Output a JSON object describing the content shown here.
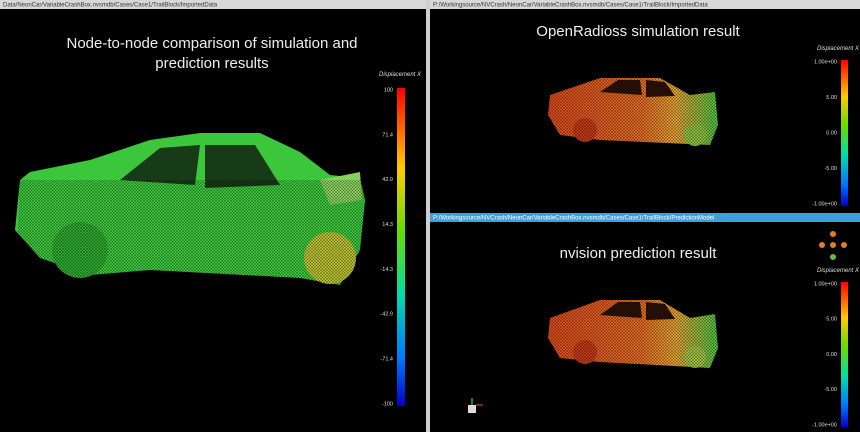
{
  "header": {
    "paths": [
      "Data/NeonCar/VariableCrashBox.nvsmdb/Cases/Case1/TrailBlock/ImportedData",
      "P:/Workingsource/NVCrash/NeonCar/VariableCrashBox.nvsmdb/Cases/Case1/TrailBlock/ImportedData",
      "P:/Workingsource/NVCrash/NeonCar/VariableCrashBox.nvsmdb/Cases/Case1/TrailBlock/PredictionModel"
    ]
  },
  "panels": [
    {
      "title": "Node-to-node comparison of simulation and prediction results",
      "colorbar": {
        "label": "Displacement X",
        "ticks": [
          "100",
          "71.4",
          "42.9",
          "14.3",
          "-14.3",
          "-42.9",
          "-71.4",
          "-100"
        ]
      }
    },
    {
      "title": "OpenRadioss simulation result",
      "colorbar": {
        "label": "Displacement X",
        "ticks": [
          "1.00e+00",
          "5.00",
          "0.00",
          "-5.00",
          "-1.00e+00"
        ]
      }
    },
    {
      "title": "nvision prediction result",
      "colorbar": {
        "label": "Displacement X",
        "ticks": [
          "1.00e+00",
          "5.00",
          "0.00",
          "-5.00",
          "-1.00e+00"
        ]
      }
    }
  ]
}
